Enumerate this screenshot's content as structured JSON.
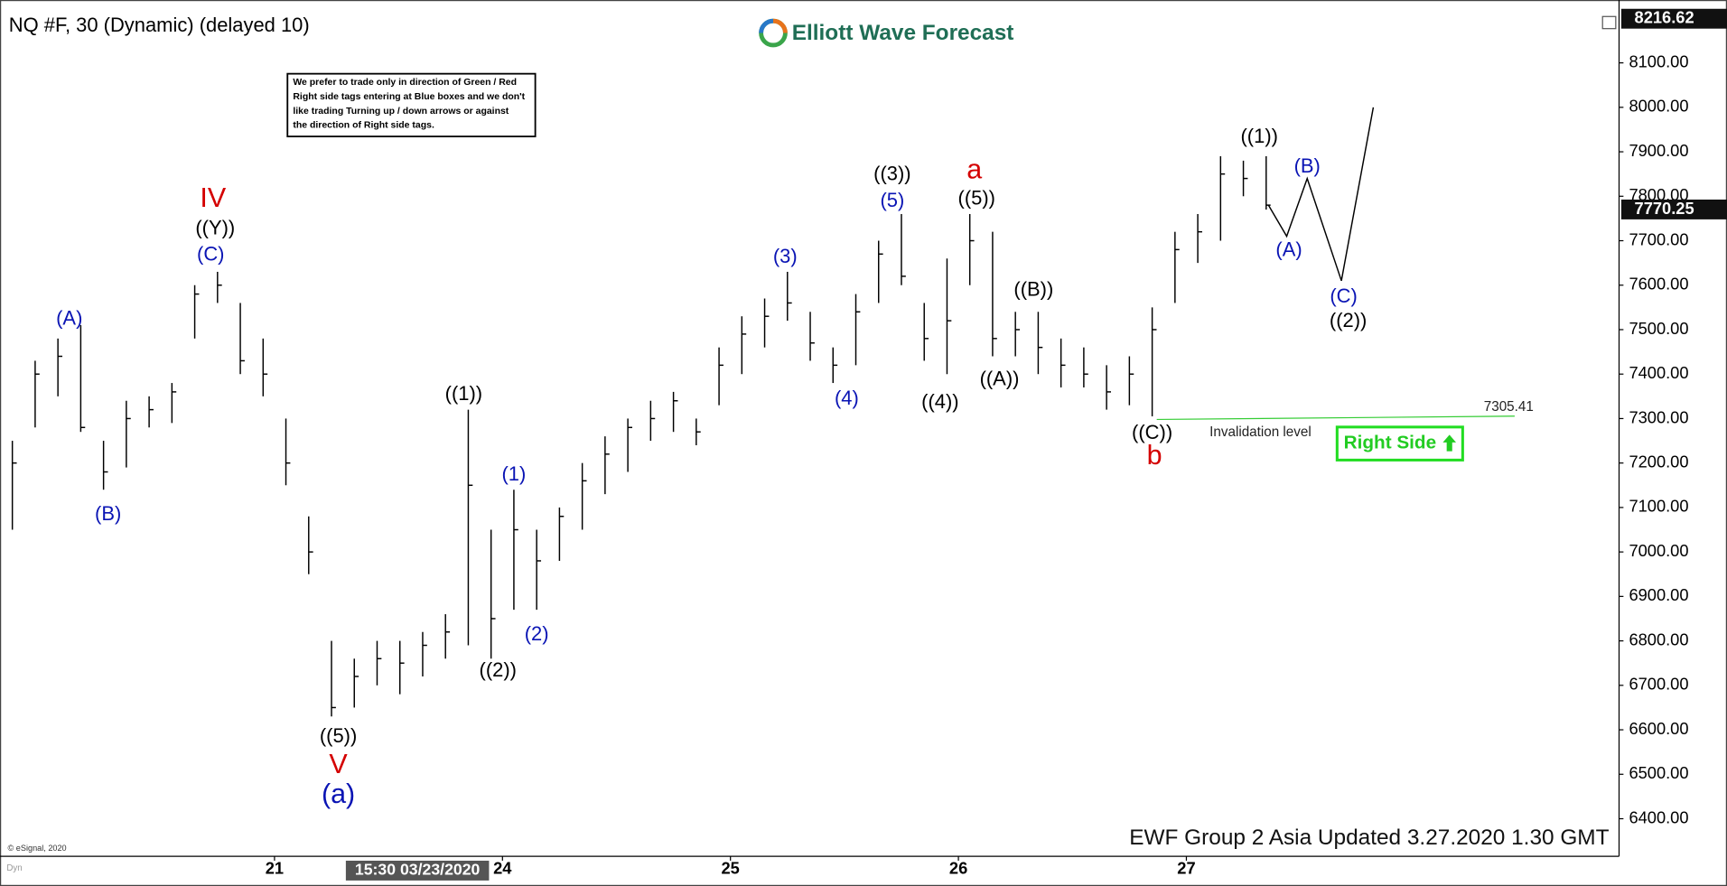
{
  "chart_data": {
    "type": "ohlc",
    "title": "NQ #F, 30 (Dynamic) (delayed 10)",
    "logo": "Elliott Wave Forecast",
    "note": [
      "We prefer to trade only in direction of Green / Red",
      "Right side tags entering at Blue boxes and we don't",
      "like trading Turning up / down arrows or against",
      "the direction of Right side tags."
    ],
    "footer": "EWF Group 2 Asia Updated 3.27.2020 1.30 GMT",
    "copyright": "© eSignal, 2020",
    "crosshair_label": "15:30 03/23/2020",
    "right_side": "Right Side",
    "color": "#000000",
    "x": [
      -1.15,
      -1.05,
      -0.95,
      -0.85,
      -0.75,
      -0.65,
      -0.55,
      -0.45,
      -0.35,
      -0.25,
      -0.15,
      -0.05,
      0.05,
      0.15,
      0.25,
      0.35,
      0.45,
      0.55,
      0.65,
      0.75,
      0.85,
      0.95,
      1.05,
      1.15,
      1.25,
      1.35,
      1.45,
      1.55,
      1.65,
      1.75,
      1.85,
      1.95,
      2.05,
      2.15,
      2.25,
      2.35,
      2.45,
      2.55,
      2.65,
      2.75,
      2.85,
      2.95,
      3.05,
      3.15,
      3.25,
      3.35,
      3.45,
      3.55,
      3.65,
      3.75,
      3.85,
      3.95,
      4.05,
      4.15,
      4.25,
      4.35
    ],
    "high": [
      7250,
      7430,
      7480,
      7510,
      7250,
      7340,
      7350,
      7380,
      7600,
      7630,
      7560,
      7480,
      7300,
      7080,
      6800,
      6760,
      6800,
      6800,
      6820,
      6860,
      7320,
      7050,
      7140,
      7050,
      7100,
      7200,
      7260,
      7300,
      7340,
      7360,
      7300,
      7460,
      7530,
      7570,
      7630,
      7540,
      7460,
      7580,
      7700,
      7760,
      7560,
      7660,
      7760,
      7720,
      7540,
      7540,
      7480,
      7460,
      7420,
      7440,
      7550,
      7720,
      7760,
      7890,
      7880,
      7890
    ],
    "low": [
      7050,
      7280,
      7350,
      7270,
      7140,
      7190,
      7280,
      7290,
      7480,
      7560,
      7400,
      7350,
      7150,
      6950,
      6630,
      6650,
      6700,
      6680,
      6720,
      6760,
      6790,
      6760,
      6870,
      6870,
      6980,
      7050,
      7130,
      7180,
      7250,
      7270,
      7240,
      7330,
      7400,
      7460,
      7520,
      7430,
      7380,
      7420,
      7560,
      7600,
      7430,
      7400,
      7600,
      7440,
      7440,
      7400,
      7370,
      7370,
      7320,
      7330,
      7305,
      7560,
      7650,
      7700,
      7800,
      7770
    ],
    "close": [
      7200,
      7400,
      7440,
      7280,
      7180,
      7300,
      7320,
      7360,
      7580,
      7600,
      7430,
      7400,
      7200,
      7000,
      6650,
      6720,
      6760,
      6750,
      6790,
      6820,
      7150,
      6850,
      7050,
      6980,
      7080,
      7160,
      7220,
      7280,
      7300,
      7340,
      7270,
      7420,
      7490,
      7530,
      7560,
      7470,
      7420,
      7540,
      7670,
      7620,
      7480,
      7520,
      7700,
      7480,
      7500,
      7460,
      7420,
      7400,
      7360,
      7400,
      7500,
      7680,
      7720,
      7850,
      7840,
      7780
    ],
    "xlim": [
      -1.18,
      5.898
    ],
    "xticks": [
      {
        "value": 0,
        "label": "21"
      },
      {
        "value": 1,
        "label": "24"
      },
      {
        "value": 2,
        "label": "25"
      },
      {
        "value": 3,
        "label": "26"
      },
      {
        "value": 4,
        "label": "27"
      }
    ],
    "ylim": [
      6318,
      8216.62
    ],
    "yticks": [
      {
        "value": 6400,
        "label": "6400.00"
      },
      {
        "value": 6500,
        "label": "6500.00"
      },
      {
        "value": 6600,
        "label": "6600.00"
      },
      {
        "value": 6700,
        "label": "6700.00"
      },
      {
        "value": 6800,
        "label": "6800.00"
      },
      {
        "value": 6900,
        "label": "6900.00"
      },
      {
        "value": 7000,
        "label": "7000.00"
      },
      {
        "value": 7100,
        "label": "7100.00"
      },
      {
        "value": 7200,
        "label": "7200.00"
      },
      {
        "value": 7300,
        "label": "7300.00"
      },
      {
        "value": 7400,
        "label": "7400.00"
      },
      {
        "value": 7500,
        "label": "7500.00"
      },
      {
        "value": 7600,
        "label": "7600.00"
      },
      {
        "value": 7700,
        "label": "7700.00"
      },
      {
        "value": 7800,
        "label": "7800.00"
      },
      {
        "value": 7900,
        "label": "7900.00"
      },
      {
        "value": 8000,
        "label": "8000.00"
      },
      {
        "value": 8100,
        "label": "8100.00"
      }
    ],
    "price_markers": [
      8216.62,
      7770.25
    ],
    "invalidation": {
      "value": 7305.41,
      "text": "Invalidation level",
      "x": [
        3.87,
        5.44
      ],
      "color": "#33cc33"
    },
    "projection": {
      "x": [
        4.36,
        4.44,
        4.53,
        4.68,
        4.82
      ],
      "y": [
        7780,
        7710,
        7840,
        7610,
        8000
      ],
      "color": "#000000"
    },
    "annotations": [
      {
        "text": "(A)",
        "x": -0.9,
        "y": 7523,
        "color": "#0a14b4",
        "emphasis": false
      },
      {
        "text": "(B)",
        "x": -0.73,
        "y": 7083,
        "color": "#0a14b4",
        "emphasis": false
      },
      {
        "text": "IV",
        "x": -0.27,
        "y": 7793,
        "color": "#d40000",
        "emphasis": true
      },
      {
        "text": "((Y))",
        "x": -0.26,
        "y": 7726,
        "color": "#000000",
        "emphasis": false
      },
      {
        "text": "(C)",
        "x": -0.28,
        "y": 7667,
        "color": "#0a14b4",
        "emphasis": false
      },
      {
        "text": "((5))",
        "x": 0.28,
        "y": 6583,
        "color": "#000000",
        "emphasis": false
      },
      {
        "text": "V",
        "x": 0.28,
        "y": 6519,
        "color": "#d40000",
        "emphasis": true
      },
      {
        "text": "(a)",
        "x": 0.28,
        "y": 6452,
        "color": "#0a14b4",
        "emphasis": true
      },
      {
        "text": "((1))",
        "x": 0.83,
        "y": 7353,
        "color": "#000000",
        "emphasis": false
      },
      {
        "text": "((2))",
        "x": 0.98,
        "y": 6732,
        "color": "#000000",
        "emphasis": false
      },
      {
        "text": "(1)",
        "x": 1.05,
        "y": 7172,
        "color": "#0a14b4",
        "emphasis": false
      },
      {
        "text": "(2)",
        "x": 1.15,
        "y": 6813,
        "color": "#0a14b4",
        "emphasis": false
      },
      {
        "text": "(3)",
        "x": 2.24,
        "y": 7662,
        "color": "#0a14b4",
        "emphasis": false
      },
      {
        "text": "(4)",
        "x": 2.51,
        "y": 7343,
        "color": "#0a14b4",
        "emphasis": false
      },
      {
        "text": "(5)",
        "x": 2.71,
        "y": 7788,
        "color": "#0a14b4",
        "emphasis": false
      },
      {
        "text": "((3))",
        "x": 2.71,
        "y": 7848,
        "color": "#000000",
        "emphasis": false
      },
      {
        "text": "a",
        "x": 3.07,
        "y": 7857,
        "color": "#d40000",
        "emphasis": true
      },
      {
        "text": "((5))",
        "x": 3.08,
        "y": 7793,
        "color": "#000000",
        "emphasis": false
      },
      {
        "text": "((4))",
        "x": 2.92,
        "y": 7335,
        "color": "#000000",
        "emphasis": false
      },
      {
        "text": "((A))",
        "x": 3.18,
        "y": 7387,
        "color": "#000000",
        "emphasis": false
      },
      {
        "text": "((B))",
        "x": 3.33,
        "y": 7588,
        "color": "#000000",
        "emphasis": false
      },
      {
        "text": "((C))",
        "x": 3.85,
        "y": 7266,
        "color": "#000000",
        "emphasis": false
      },
      {
        "text": "b",
        "x": 3.86,
        "y": 7214,
        "color": "#d40000",
        "emphasis": true
      },
      {
        "text": "((1))",
        "x": 4.32,
        "y": 7932,
        "color": "#000000",
        "emphasis": false
      },
      {
        "text": "(A)",
        "x": 4.45,
        "y": 7677,
        "color": "#0a14b4",
        "emphasis": false
      },
      {
        "text": "(B)",
        "x": 4.53,
        "y": 7865,
        "color": "#0a14b4",
        "emphasis": false
      },
      {
        "text": "(C)",
        "x": 4.69,
        "y": 7573,
        "color": "#0a14b4",
        "emphasis": false
      },
      {
        "text": "((2))",
        "x": 4.71,
        "y": 7518,
        "color": "#000000",
        "emphasis": false
      }
    ]
  }
}
